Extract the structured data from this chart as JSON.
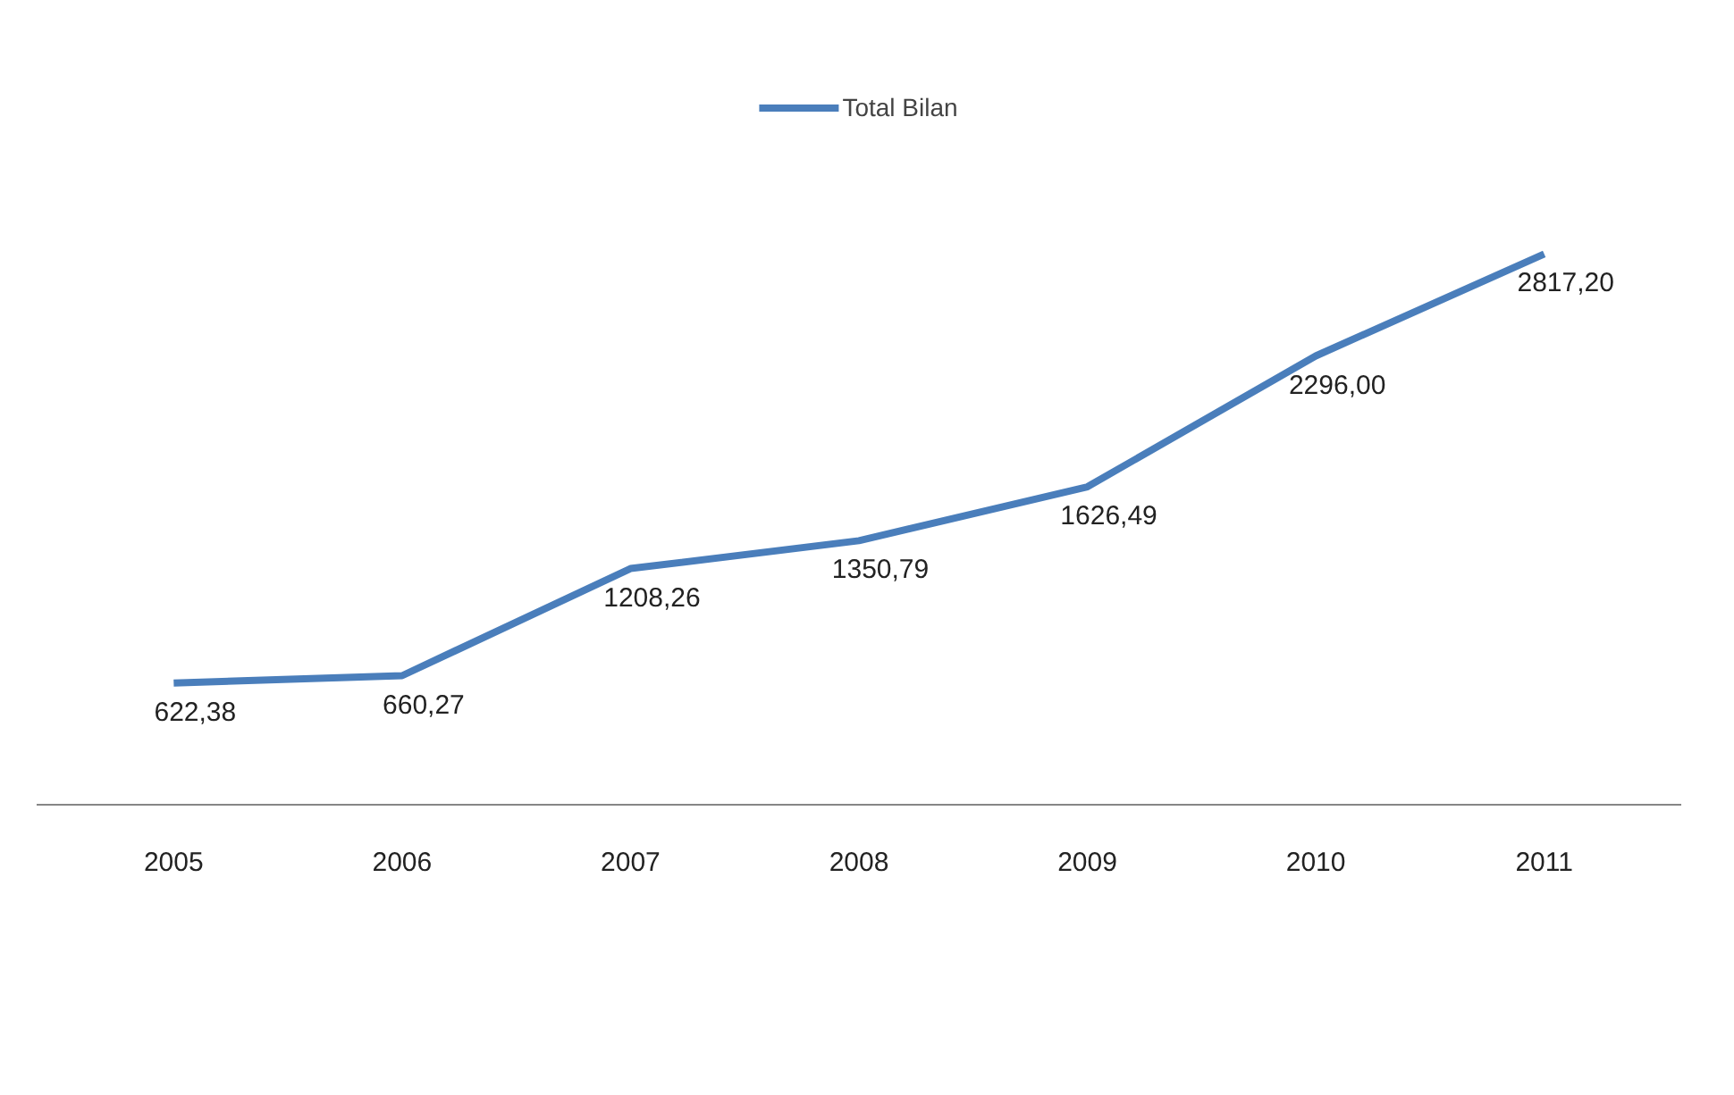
{
  "chart_data": {
    "type": "line",
    "categories": [
      "2005",
      "2006",
      "2007",
      "2008",
      "2009",
      "2010",
      "2011"
    ],
    "series": [
      {
        "name": "Total Bilan",
        "color": "#4a7ebb",
        "values": [
          622.38,
          660.27,
          1208.26,
          1350.79,
          1626.49,
          2296.0,
          2817.2
        ],
        "value_labels": [
          "622,38",
          "660,27",
          "1208,26",
          "1350,79",
          "1626,49",
          "2296,00",
          "2817,20"
        ]
      }
    ],
    "legend": "top",
    "grid": false,
    "marker": "none",
    "line_style": "solid"
  }
}
